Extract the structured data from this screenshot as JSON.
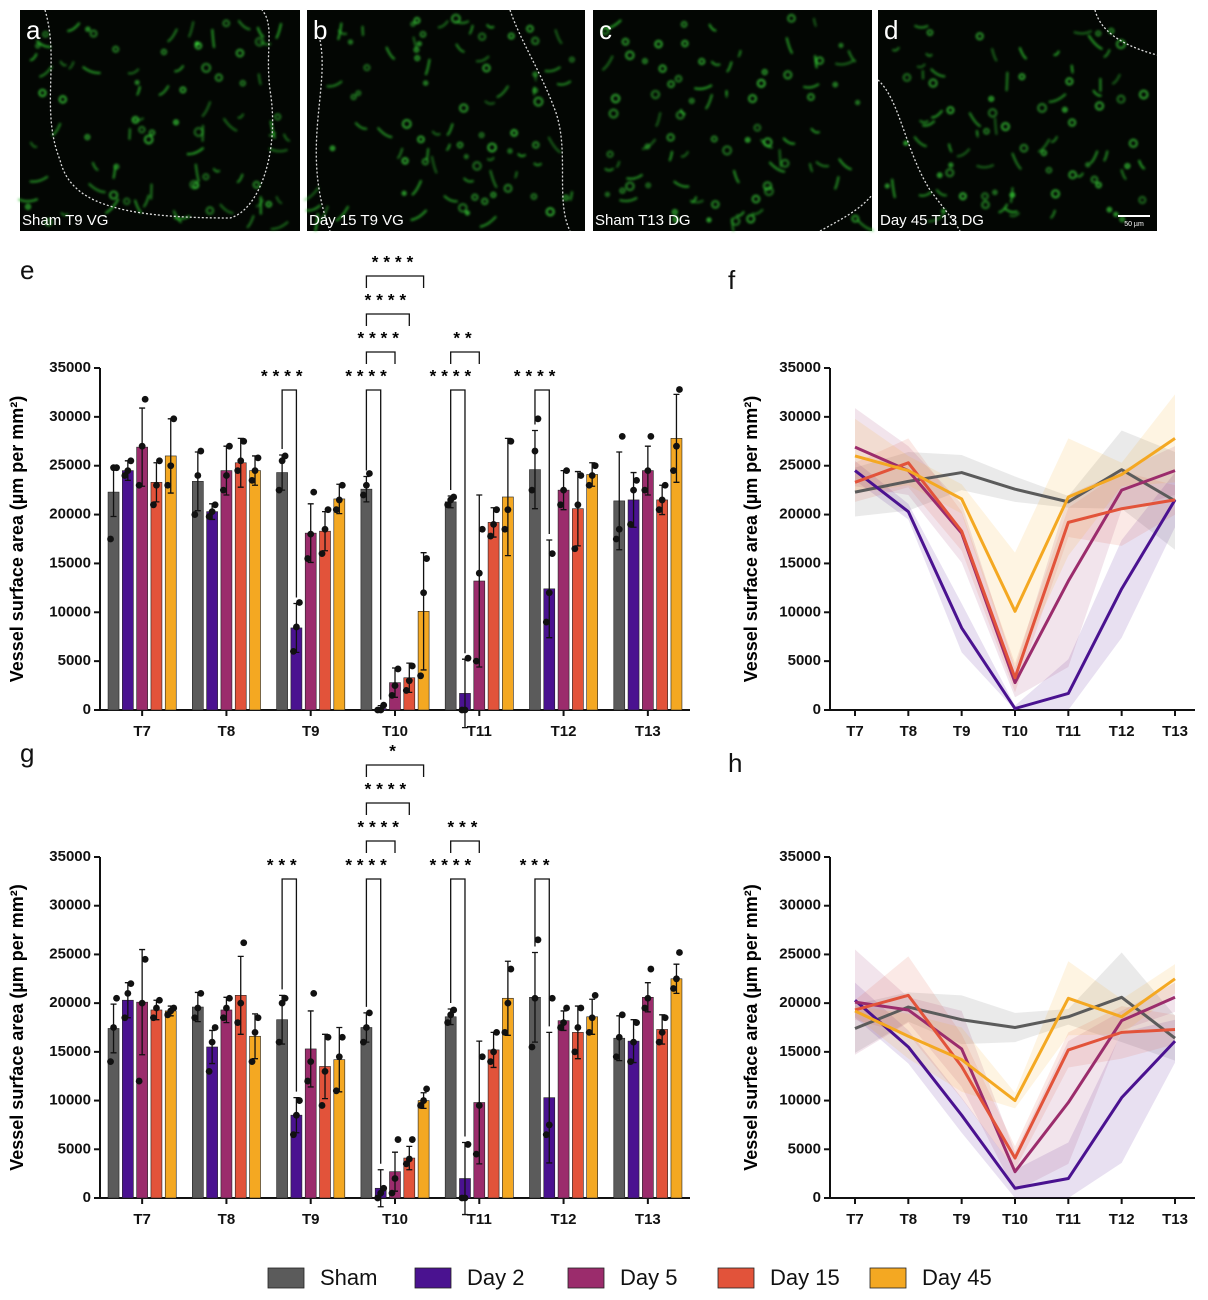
{
  "panels": [
    {
      "letter": "a",
      "caption": "Sham T9 VG"
    },
    {
      "letter": "b",
      "caption": "Day 15 T9 VG"
    },
    {
      "letter": "c",
      "caption": "Sham T13 DG"
    },
    {
      "letter": "d",
      "caption": "Day 45 T13 DG"
    }
  ],
  "scale_bar": "50 µm",
  "chart_data": [
    {
      "type": "bar",
      "panel": "e",
      "ylabel": "Vessel surface area (µm per mm²)",
      "categories": [
        "T7",
        "T8",
        "T9",
        "T10",
        "T11",
        "T12",
        "T13"
      ],
      "ylim": [
        0,
        35000
      ],
      "yticks": [
        0,
        5000,
        10000,
        15000,
        20000,
        25000,
        30000,
        35000
      ],
      "series": [
        {
          "name": "Sham",
          "color": "#5b5b5b",
          "values": [
            22300,
            23400,
            24300,
            22600,
            21300,
            24600,
            21400
          ],
          "errors": [
            2500,
            3000,
            1800,
            1300,
            600,
            4000,
            5000
          ],
          "points": [
            [
              17500,
              24800,
              24800
            ],
            [
              20000,
              24000,
              26500
            ],
            [
              22500,
              25500,
              26000
            ],
            [
              22000,
              23000,
              24200
            ],
            [
              21000,
              21500,
              21800
            ],
            [
              22500,
              26500,
              29800
            ],
            [
              17500,
              18500,
              28000
            ]
          ]
        },
        {
          "name": "Day 2",
          "color": "#4a1290",
          "values": [
            24500,
            20300,
            8400,
            150,
            1700,
            12400,
            21500
          ],
          "errors": [
            1000,
            800,
            2500,
            300,
            3500,
            5000,
            2800
          ],
          "points": [
            [
              24000,
              24500,
              25500
            ],
            [
              19800,
              20300,
              21000
            ],
            [
              6000,
              8500,
              11000
            ],
            [
              0,
              0,
              500
            ],
            [
              0,
              0,
              5300
            ],
            [
              9000,
              12000,
              16000
            ],
            [
              19000,
              22500,
              23500
            ]
          ]
        },
        {
          "name": "Day 5",
          "color": "#9b2c6c",
          "values": [
            26900,
            24500,
            18100,
            2800,
            13200,
            22500,
            24500
          ],
          "errors": [
            4000,
            2500,
            3000,
            1500,
            8800,
            2000,
            2500
          ],
          "points": [
            [
              23000,
              27000,
              31800
            ],
            [
              22500,
              24000,
              27000
            ],
            [
              15500,
              18000,
              22300
            ],
            [
              1500,
              2500,
              4200
            ],
            [
              5000,
              14000,
              18500
            ],
            [
              21000,
              22500,
              24500
            ],
            [
              22500,
              24500,
              28000
            ]
          ]
        },
        {
          "name": "Day 15",
          "color": "#e2533a",
          "values": [
            23300,
            25300,
            18300,
            3300,
            19200,
            20600,
            21500
          ],
          "errors": [
            2000,
            2500,
            2000,
            1500,
            1500,
            3800,
            1500
          ],
          "points": [
            [
              21000,
              23000,
              25500
            ],
            [
              24500,
              25500,
              27500
            ],
            [
              16000,
              18500,
              20500
            ],
            [
              2000,
              3000,
              4500
            ],
            [
              17800,
              19000,
              20500
            ],
            [
              16500,
              21000,
              24000
            ],
            [
              20500,
              21500,
              23000
            ]
          ]
        },
        {
          "name": "Day 45",
          "color": "#f4a822",
          "values": [
            26000,
            24500,
            21600,
            10100,
            21800,
            24100,
            27800
          ],
          "errors": [
            3800,
            1500,
            1500,
            6000,
            6000,
            1200,
            4500
          ],
          "points": [
            [
              23000,
              25000,
              29800
            ],
            [
              23500,
              24500,
              25800
            ],
            [
              20500,
              21500,
              23000
            ],
            [
              3500,
              12000,
              15500
            ],
            [
              18500,
              20500,
              27500
            ],
            [
              23000,
              24000,
              25000
            ],
            [
              24500,
              27000,
              32800
            ]
          ]
        }
      ],
      "annotations": [
        {
          "category": "T9",
          "groups": [
            "Sham",
            "Day 2"
          ],
          "label": "****"
        },
        {
          "category": "T10",
          "groups": [
            "Sham",
            "Day 2"
          ],
          "label": "****"
        },
        {
          "category": "T10",
          "groups": [
            "Sham",
            "Day 5"
          ],
          "label": "****"
        },
        {
          "category": "T10",
          "groups": [
            "Sham",
            "Day 15"
          ],
          "label": "****"
        },
        {
          "category": "T10",
          "groups": [
            "Sham",
            "Day 45"
          ],
          "label": "****"
        },
        {
          "category": "T11",
          "groups": [
            "Sham",
            "Day 2"
          ],
          "label": "****"
        },
        {
          "category": "T11",
          "groups": [
            "Sham",
            "Day 5"
          ],
          "label": "**"
        },
        {
          "category": "T12",
          "groups": [
            "Sham",
            "Day 2"
          ],
          "label": "****"
        }
      ]
    },
    {
      "type": "line",
      "panel": "f",
      "ylabel": "Vessel surface area (µm per mm²)",
      "categories": [
        "T7",
        "T8",
        "T9",
        "T10",
        "T11",
        "T12",
        "T13"
      ],
      "ylim": [
        0,
        35000
      ],
      "yticks": [
        0,
        5000,
        10000,
        15000,
        20000,
        25000,
        30000,
        35000
      ],
      "series": [
        {
          "name": "Sham",
          "color": "#5b5b5b",
          "values": [
            22300,
            23400,
            24300,
            22600,
            21300,
            24600,
            21400
          ],
          "errors": [
            2500,
            3000,
            1800,
            1300,
            600,
            4000,
            5000
          ]
        },
        {
          "name": "Day 2",
          "color": "#4a1290",
          "values": [
            24500,
            20300,
            8400,
            150,
            1700,
            12400,
            21500
          ],
          "errors": [
            1000,
            800,
            2500,
            300,
            3500,
            5000,
            2800
          ]
        },
        {
          "name": "Day 5",
          "color": "#9b2c6c",
          "values": [
            26900,
            24500,
            18100,
            2800,
            13200,
            22500,
            24500
          ],
          "errors": [
            4000,
            2500,
            3000,
            1500,
            8800,
            2000,
            2500
          ]
        },
        {
          "name": "Day 15",
          "color": "#e2533a",
          "values": [
            23300,
            25300,
            18300,
            3300,
            19200,
            20600,
            21500
          ],
          "errors": [
            2000,
            2500,
            2000,
            1500,
            1500,
            3800,
            1500
          ]
        },
        {
          "name": "Day 45",
          "color": "#f4a822",
          "values": [
            26000,
            24500,
            21600,
            10100,
            21800,
            24100,
            27800
          ],
          "errors": [
            3800,
            1500,
            1500,
            6000,
            6000,
            1200,
            4500
          ]
        }
      ]
    },
    {
      "type": "bar",
      "panel": "g",
      "ylabel": "Vessel surface area (µm per mm²)",
      "categories": [
        "T7",
        "T8",
        "T9",
        "T10",
        "T11",
        "T12",
        "T13"
      ],
      "ylim": [
        0,
        35000
      ],
      "yticks": [
        0,
        5000,
        10000,
        15000,
        20000,
        25000,
        30000,
        35000
      ],
      "series": [
        {
          "name": "Sham",
          "color": "#5b5b5b",
          "values": [
            17400,
            19600,
            18300,
            17500,
            18600,
            20600,
            16400
          ],
          "errors": [
            2500,
            1500,
            2500,
            1500,
            800,
            4600,
            2300
          ],
          "points": [
            [
              14000,
              17500,
              20500
            ],
            [
              18500,
              19500,
              21000
            ],
            [
              16000,
              20000,
              20500
            ],
            [
              16000,
              17500,
              19000
            ],
            [
              18000,
              18800,
              19300
            ],
            [
              15500,
              20500,
              26500
            ],
            [
              14500,
              16500,
              18800
            ]
          ]
        },
        {
          "name": "Day 2",
          "color": "#4a1290",
          "values": [
            20300,
            15500,
            8500,
            1000,
            2000,
            10300,
            16100
          ],
          "errors": [
            1800,
            1700,
            1800,
            1900,
            3700,
            6700,
            2200
          ],
          "points": [
            [
              18500,
              21000,
              22000
            ],
            [
              13000,
              16000,
              17500
            ],
            [
              6500,
              8500,
              10000
            ],
            [
              0,
              500,
              1000
            ],
            [
              0,
              0,
              5500
            ],
            [
              6500,
              7500,
              20500
            ],
            [
              14000,
              16000,
              18000
            ]
          ]
        },
        {
          "name": "Day 5",
          "color": "#9b2c6c",
          "values": [
            20100,
            19300,
            15300,
            2700,
            9800,
            18200,
            20600
          ],
          "errors": [
            5400,
            1300,
            3900,
            2000,
            6300,
            1000,
            1500
          ],
          "points": [
            [
              12000,
              20000,
              24500
            ],
            [
              18500,
              19500,
              20500
            ],
            [
              12000,
              14000,
              21000
            ],
            [
              500,
              2000,
              6000
            ],
            [
              4500,
              9500,
              14500
            ],
            [
              17500,
              18000,
              19500
            ],
            [
              19500,
              20500,
              23500
            ]
          ]
        },
        {
          "name": "Day 15",
          "color": "#e2533a",
          "values": [
            19300,
            20800,
            13500,
            4100,
            15200,
            17000,
            17300
          ],
          "errors": [
            1000,
            4000,
            3300,
            1200,
            1800,
            2700,
            1500
          ],
          "points": [
            [
              18500,
              19500,
              20300
            ],
            [
              18000,
              20000,
              26200
            ],
            [
              9500,
              13000,
              16500
            ],
            [
              3500,
              4000,
              6000
            ],
            [
              14000,
              15000,
              17000
            ],
            [
              15000,
              17500,
              19500
            ],
            [
              16000,
              17000,
              18500
            ]
          ]
        },
        {
          "name": "Day 45",
          "color": "#f4a822",
          "values": [
            19200,
            16600,
            14200,
            10000,
            20500,
            18600,
            22500
          ],
          "errors": [
            500,
            2300,
            3300,
            800,
            3800,
            1800,
            1500
          ],
          "points": [
            [
              18800,
              19200,
              19500
            ],
            [
              14000,
              17000,
              18500
            ],
            [
              11000,
              14500,
              16500
            ],
            [
              9500,
              10000,
              11200
            ],
            [
              17000,
              20000,
              23500
            ],
            [
              17000,
              18500,
              20800
            ],
            [
              21500,
              22500,
              25200
            ]
          ]
        }
      ],
      "annotations": [
        {
          "category": "T9",
          "groups": [
            "Sham",
            "Day 2"
          ],
          "label": "***"
        },
        {
          "category": "T10",
          "groups": [
            "Sham",
            "Day 2"
          ],
          "label": "****"
        },
        {
          "category": "T10",
          "groups": [
            "Sham",
            "Day 5"
          ],
          "label": "****"
        },
        {
          "category": "T10",
          "groups": [
            "Sham",
            "Day 15"
          ],
          "label": "****"
        },
        {
          "category": "T10",
          "groups": [
            "Sham",
            "Day 45"
          ],
          "label": "*"
        },
        {
          "category": "T11",
          "groups": [
            "Sham",
            "Day 2"
          ],
          "label": "****"
        },
        {
          "category": "T11",
          "groups": [
            "Sham",
            "Day 5"
          ],
          "label": "***"
        },
        {
          "category": "T12",
          "groups": [
            "Sham",
            "Day 2"
          ],
          "label": "***"
        }
      ]
    },
    {
      "type": "line",
      "panel": "h",
      "ylabel": "Vessel surface area (µm per mm²)",
      "categories": [
        "T7",
        "T8",
        "T9",
        "T10",
        "T11",
        "T12",
        "T13"
      ],
      "ylim": [
        0,
        35000
      ],
      "yticks": [
        0,
        5000,
        10000,
        15000,
        20000,
        25000,
        30000,
        35000
      ],
      "series": [
        {
          "name": "Sham",
          "color": "#5b5b5b",
          "values": [
            17400,
            19600,
            18300,
            17500,
            18600,
            20600,
            16400
          ],
          "errors": [
            2500,
            1500,
            2500,
            1500,
            800,
            4600,
            2300
          ]
        },
        {
          "name": "Day 2",
          "color": "#4a1290",
          "values": [
            20300,
            15500,
            8500,
            1000,
            2000,
            10300,
            16100
          ],
          "errors": [
            1800,
            1700,
            1800,
            1900,
            3700,
            6700,
            2200
          ]
        },
        {
          "name": "Day 5",
          "color": "#9b2c6c",
          "values": [
            20100,
            19300,
            15300,
            2700,
            9800,
            18200,
            20600
          ],
          "errors": [
            5400,
            1300,
            3900,
            2000,
            6300,
            1000,
            1500
          ]
        },
        {
          "name": "Day 15",
          "color": "#e2533a",
          "values": [
            19300,
            20800,
            13500,
            4100,
            15200,
            17000,
            17300
          ],
          "errors": [
            1000,
            4000,
            3300,
            1200,
            1800,
            2700,
            1500
          ]
        },
        {
          "name": "Day 45",
          "color": "#f4a822",
          "values": [
            19200,
            16600,
            14200,
            10000,
            20500,
            18600,
            22500
          ],
          "errors": [
            500,
            2300,
            3300,
            800,
            3800,
            1800,
            1500
          ]
        }
      ]
    }
  ]
}
